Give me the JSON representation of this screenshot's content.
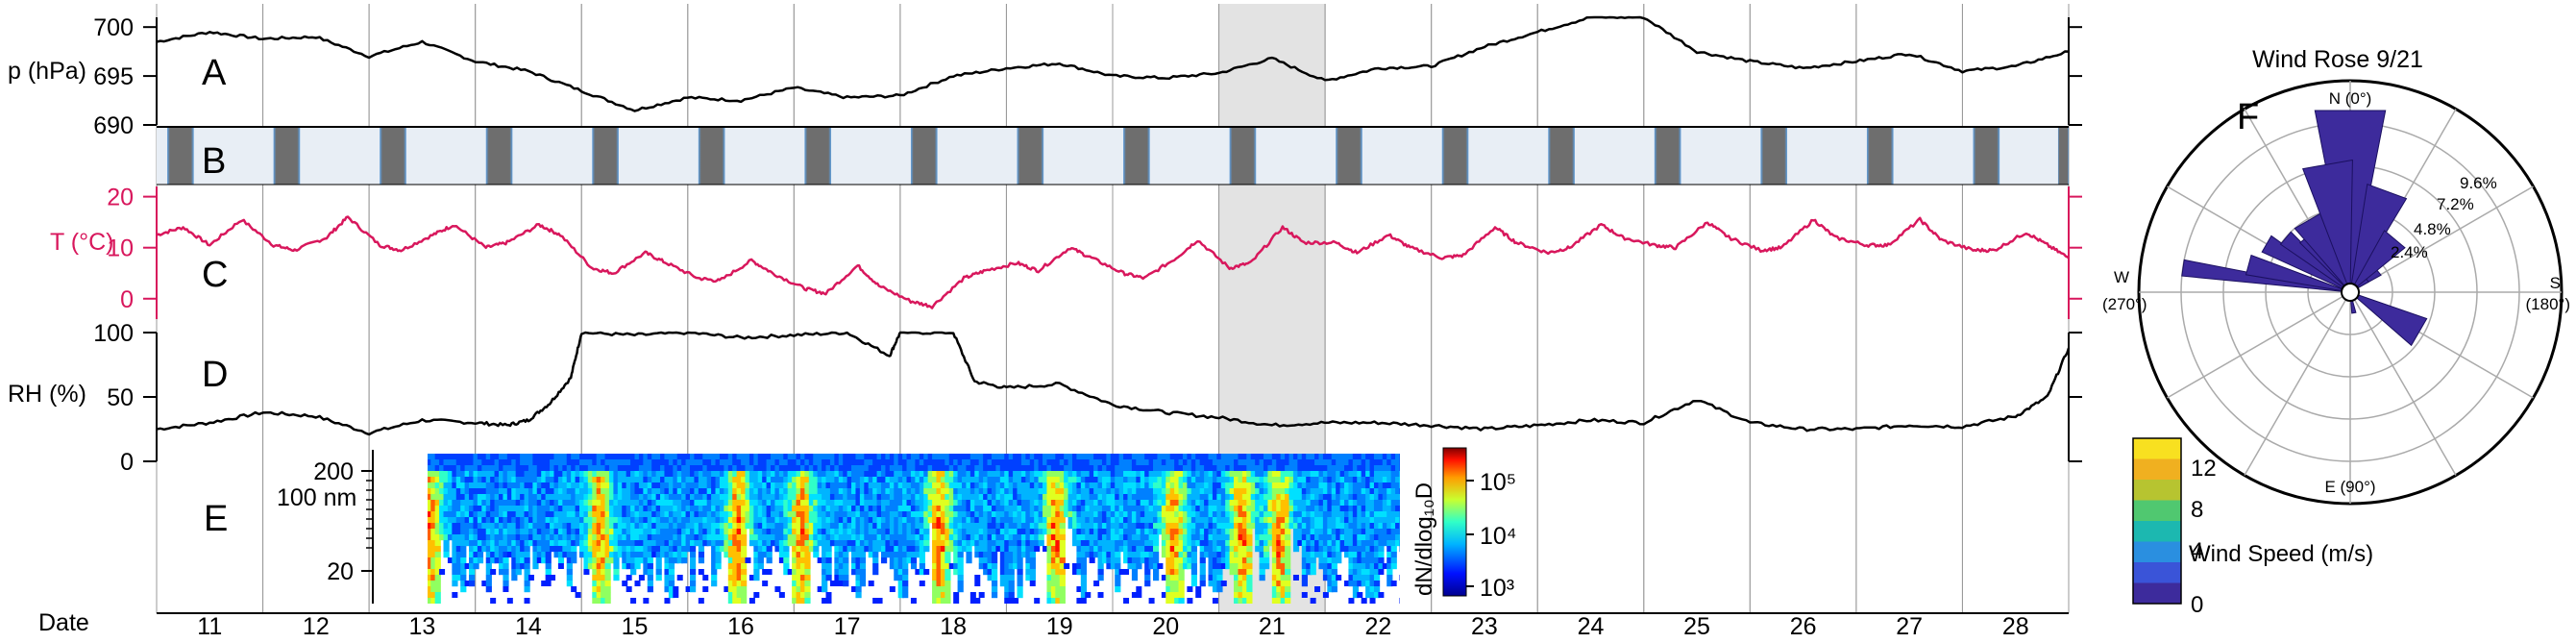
{
  "chart_data": [
    {
      "type": "line",
      "panel": "A",
      "ylabel": "p (hPa)",
      "ylim": [
        690,
        701
      ],
      "yticks": [
        700,
        695,
        690
      ],
      "x": [
        10.5,
        11,
        11.5,
        12,
        12.5,
        13,
        13.5,
        14,
        14.5,
        15,
        15.5,
        16,
        16.5,
        17,
        17.5,
        18,
        18.5,
        19,
        19.5,
        20,
        20.5,
        21,
        21.5,
        22,
        22.5,
        23,
        23.5,
        24,
        24.5,
        25,
        25.5,
        26,
        26.5,
        27,
        27.5,
        28,
        28.5
      ],
      "values": [
        698.5,
        699.5,
        698.8,
        699.0,
        697.0,
        698.5,
        696.5,
        695.5,
        693.5,
        691.5,
        692.8,
        692.5,
        693.8,
        692.8,
        693.0,
        695.0,
        695.8,
        696.3,
        695.0,
        694.8,
        695.3,
        696.8,
        694.5,
        695.8,
        696.0,
        698.0,
        699.5,
        701.0,
        701.0,
        697.5,
        696.5,
        695.8,
        696.5,
        697.3,
        695.5,
        696.0,
        697.5
      ]
    },
    {
      "type": "area",
      "panel": "B",
      "description_free": true,
      "night_intervals": [
        [
          10.6,
          10.85
        ],
        [
          11.6,
          11.85
        ],
        [
          12.6,
          12.85
        ],
        [
          13.6,
          13.85
        ],
        [
          14.6,
          14.85
        ],
        [
          15.6,
          15.85
        ],
        [
          16.6,
          16.85
        ],
        [
          17.6,
          17.85
        ],
        [
          18.6,
          18.85
        ],
        [
          19.6,
          19.85
        ],
        [
          20.6,
          20.85
        ],
        [
          21.6,
          21.85
        ],
        [
          22.6,
          22.85
        ],
        [
          23.6,
          23.85
        ],
        [
          24.6,
          24.85
        ],
        [
          25.6,
          25.85
        ],
        [
          26.6,
          26.85
        ],
        [
          27.6,
          27.85
        ],
        [
          28.4,
          28.5
        ]
      ]
    },
    {
      "type": "line",
      "panel": "C",
      "ylabel": "T (°C)",
      "ylim": [
        -4,
        22
      ],
      "yticks": [
        20,
        10,
        0
      ],
      "x": [
        10.5,
        10.75,
        11,
        11.3,
        11.6,
        11.8,
        12.1,
        12.3,
        12.6,
        12.8,
        13.1,
        13.3,
        13.6,
        13.8,
        14.1,
        14.3,
        14.6,
        14.8,
        15.1,
        15.3,
        15.6,
        15.8,
        16.1,
        16.3,
        16.6,
        16.8,
        17.1,
        17.3,
        17.6,
        17.8,
        18.1,
        18.3,
        18.6,
        18.8,
        19.1,
        19.3,
        19.6,
        19.8,
        20.1,
        20.3,
        20.6,
        20.8,
        21.1,
        21.3,
        21.6,
        21.8,
        22.1,
        22.3,
        22.6,
        22.8,
        23.1,
        23.3,
        23.6,
        23.8,
        24.1,
        24.3,
        24.6,
        24.8,
        25.1,
        25.3,
        25.6,
        25.8,
        26.1,
        26.3,
        26.6,
        26.8,
        27.1,
        27.3,
        27.6,
        27.8,
        28.1,
        28.3,
        28.5
      ],
      "values": [
        12.5,
        14.0,
        10.5,
        15.5,
        10.5,
        9.5,
        12.0,
        16.0,
        10.5,
        9.5,
        12.5,
        14.5,
        10.0,
        11.0,
        14.5,
        12.5,
        6.0,
        5.0,
        9.0,
        7.0,
        4.0,
        3.5,
        7.5,
        5.0,
        2.0,
        1.0,
        6.5,
        2.5,
        -0.5,
        -1.5,
        4.0,
        5.5,
        7.0,
        5.5,
        10.0,
        8.0,
        5.0,
        4.0,
        8.0,
        11.5,
        6.0,
        7.0,
        14.0,
        11.0,
        11.0,
        9.0,
        12.5,
        10.0,
        8.0,
        8.5,
        14.0,
        11.0,
        9.0,
        10.0,
        14.5,
        12.0,
        10.5,
        10.0,
        15.0,
        12.0,
        9.5,
        10.0,
        15.5,
        12.0,
        10.5,
        10.5,
        15.5,
        11.5,
        9.5,
        9.5,
        13.0,
        10.5,
        8.0
      ]
    },
    {
      "type": "line",
      "panel": "D",
      "ylabel": "RH (%)",
      "ylim": [
        0,
        100
      ],
      "yticks": [
        100,
        50,
        0
      ],
      "x": [
        10.5,
        11,
        11.5,
        12,
        12.5,
        13,
        13.5,
        13.8,
        14,
        14.2,
        14.4,
        14.5,
        15,
        15.5,
        16,
        16.5,
        17,
        17.4,
        17.5,
        18,
        18.2,
        18.5,
        19,
        19.5,
        20,
        20.5,
        21,
        21.5,
        22,
        22.5,
        23,
        23.5,
        24,
        24.5,
        25,
        25.5,
        26,
        26.5,
        27,
        27.5,
        28,
        28.3,
        28.5
      ],
      "values": [
        25,
        30,
        38,
        35,
        22,
        32,
        30,
        28,
        32,
        45,
        65,
        100,
        98,
        100,
        96,
        98,
        100,
        82,
        100,
        100,
        62,
        57,
        60,
        44,
        38,
        34,
        28,
        30,
        30,
        28,
        25,
        28,
        32,
        30,
        48,
        30,
        25,
        25,
        28,
        27,
        35,
        50,
        88
      ]
    },
    {
      "type": "heatmap",
      "panel": "E",
      "ylabel": "100 nm",
      "yticks": [
        200,
        20
      ],
      "colorbar_label": "dN/dlog₁₀D",
      "colorbar_ticks": [
        "10⁵",
        "10⁴",
        "10³"
      ],
      "event_days": [
        13.05,
        14.65,
        15.95,
        16.55,
        17.85,
        18.95,
        20.05,
        20.7,
        21.05
      ]
    },
    {
      "type": "scatter",
      "panel": "F",
      "title": "Wind Rose 9/21",
      "direction_labels": [
        "N (0°)",
        "S",
        "(180°)",
        "E (90°)",
        "W",
        "(270°)"
      ],
      "ring_labels": [
        "2.4%",
        "4.8%",
        "7.2%",
        "9.6%"
      ],
      "colorbar_label": "Wind Speed (m/s)",
      "colorbar_ticks": [
        "12",
        "8",
        "4",
        "0"
      ],
      "sectors": [
        {
          "angle": 270,
          "radius": 9.6
        },
        {
          "angle": 285,
          "radius": 6.0
        },
        {
          "angle": 300,
          "radius": 5.5
        },
        {
          "angle": 310,
          "radius": 4.8
        },
        {
          "angle": 320,
          "radius": 4.0
        },
        {
          "angle": 330,
          "radius": 3.0
        },
        {
          "angle": 345,
          "radius": 2.4
        },
        {
          "angle": 360,
          "radius": 1.8
        },
        {
          "angle": 15,
          "radius": 3.5
        },
        {
          "angle": 25,
          "radius": 2.0
        },
        {
          "angle": 60,
          "radius": 4.6
        },
        {
          "angle": 100,
          "radius": 1.2
        },
        {
          "angle": 200,
          "radius": 1.2
        },
        {
          "angle": 240,
          "radius": 4.8
        },
        {
          "angle": 225,
          "radius": 10.5
        },
        {
          "angle": 215,
          "radius": 6.2
        },
        {
          "angle": 205,
          "radius": 4.0
        },
        {
          "angle": 230,
          "radius": 7.5
        }
      ]
    }
  ],
  "xaxis": {
    "label": "Date",
    "ticks": [
      "11",
      "12",
      "13",
      "14",
      "15",
      "16",
      "17",
      "18",
      "19",
      "20",
      "21",
      "22",
      "23",
      "24",
      "25",
      "26",
      "27",
      "28"
    ],
    "range": [
      10.5,
      28.5
    ]
  },
  "highlight": [
    20.5,
    21.5
  ],
  "panel_letters": [
    "A",
    "B",
    "C",
    "D",
    "E",
    "F"
  ],
  "colors": {
    "temperature": "#d8175c",
    "line": "#000000",
    "night": "#6e6e6e",
    "day": "#e8eef5",
    "highlight": "#e3e3e3",
    "rose": "#3d2b9c"
  }
}
